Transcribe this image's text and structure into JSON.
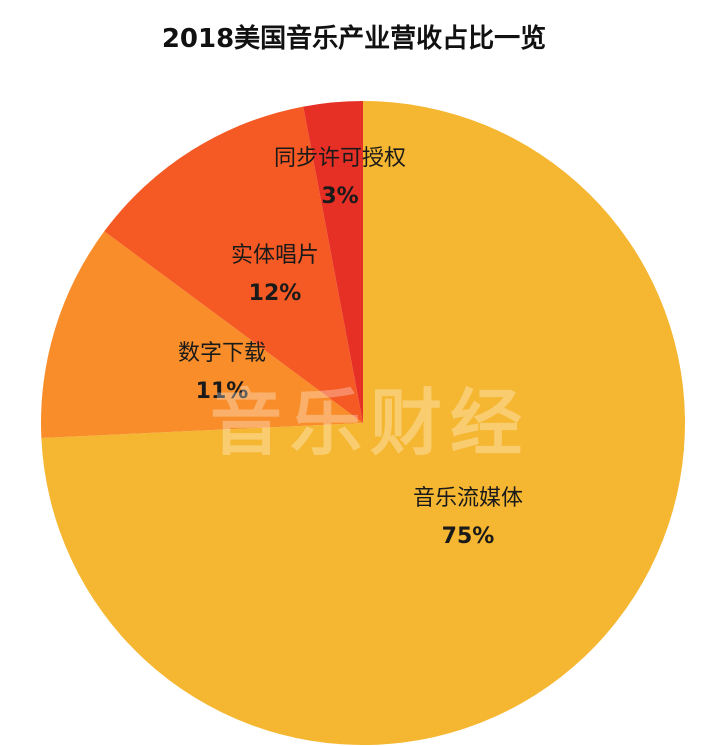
{
  "watermark": "音乐财经",
  "chart_data": {
    "type": "pie",
    "title": "2018美国音乐产业营收占比一览",
    "slices": [
      {
        "label": "音乐流媒体",
        "pct_text": "75%",
        "value": 75,
        "color": "#F5B731"
      },
      {
        "label": "数字下载",
        "pct_text": "11%",
        "value": 11,
        "color": "#F88D2A"
      },
      {
        "label": "实体唱片",
        "pct_text": "12%",
        "value": 12,
        "color": "#F55A24"
      },
      {
        "label": "同步许可授权",
        "pct_text": "3%",
        "value": 3,
        "color": "#E63026"
      }
    ]
  }
}
